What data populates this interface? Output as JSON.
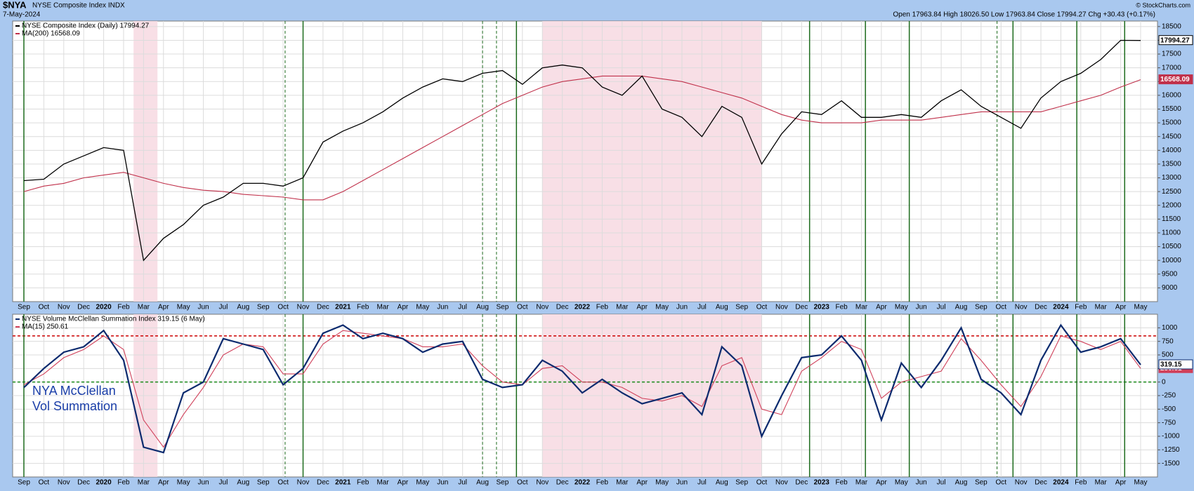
{
  "header": {
    "symbol": "$NYA",
    "name": "NYSE Composite Index INDX",
    "date": "7-May-2024",
    "quote": "Open 17963.84  High 18026.50  Low 17963.84  Close 17994.27  Chg +30.43 (+0.17%)",
    "credit": "© StockCharts.com"
  },
  "chart_data": [
    {
      "type": "line",
      "categories": [
        "Sep",
        "Oct",
        "Nov",
        "Dec",
        "2020",
        "Feb",
        "Mar",
        "Apr",
        "May",
        "Jun",
        "Jul",
        "Aug",
        "Sep",
        "Oct",
        "Nov",
        "Dec",
        "2021",
        "Feb",
        "Mar",
        "Apr",
        "May",
        "Jun",
        "Jul",
        "Aug",
        "Sep",
        "Oct",
        "Nov",
        "Dec",
        "2022",
        "Feb",
        "Mar",
        "Apr",
        "May",
        "Jun",
        "Jul",
        "Aug",
        "Sep",
        "Oct",
        "Nov",
        "Dec",
        "2023",
        "Feb",
        "Mar",
        "Apr",
        "May",
        "Jun",
        "Jul",
        "Aug",
        "Sep",
        "Oct",
        "Nov",
        "Dec",
        "2024",
        "Feb",
        "Mar",
        "Apr",
        "May"
      ],
      "series": [
        {
          "name": "NYSE Composite Index (Daily) 17994.27",
          "color": "#000000",
          "values": [
            12900,
            12950,
            13500,
            13800,
            14100,
            14000,
            10000,
            10800,
            11300,
            12000,
            12300,
            12800,
            12800,
            12700,
            13000,
            14300,
            14700,
            15000,
            15400,
            15900,
            16300,
            16600,
            16500,
            16800,
            16900,
            16400,
            17000,
            17100,
            17000,
            16300,
            16000,
            16700,
            15500,
            15200,
            14500,
            15600,
            15200,
            13500,
            14600,
            15400,
            15300,
            15800,
            15200,
            15200,
            15300,
            15200,
            15800,
            16200,
            15600,
            15200,
            14800,
            15900,
            16500,
            16800,
            17300,
            18000,
            17994.27
          ]
        },
        {
          "name": "MA(200) 16568.09",
          "color": "#c0304a",
          "values": [
            12500,
            12700,
            12800,
            13000,
            13100,
            13200,
            13000,
            12800,
            12650,
            12550,
            12500,
            12400,
            12350,
            12300,
            12200,
            12200,
            12500,
            12900,
            13300,
            13700,
            14100,
            14500,
            14900,
            15300,
            15700,
            16000,
            16300,
            16500,
            16600,
            16700,
            16700,
            16700,
            16600,
            16500,
            16300,
            16100,
            15900,
            15600,
            15300,
            15100,
            15000,
            15000,
            15000,
            15100,
            15100,
            15100,
            15200,
            15300,
            15400,
            15400,
            15400,
            15400,
            15600,
            15800,
            16000,
            16300,
            16568.09
          ]
        }
      ],
      "ylim": [
        8500,
        18700
      ],
      "yticks": [
        9000,
        9500,
        10000,
        10500,
        11000,
        11500,
        12000,
        12500,
        13000,
        13500,
        14000,
        14500,
        15000,
        15500,
        16000,
        16500,
        17000,
        17500,
        18000,
        18500
      ],
      "grid": true,
      "vlines": [
        {
          "x": 0,
          "style": "solid"
        },
        {
          "x": 13.1,
          "style": "dashed"
        },
        {
          "x": 14,
          "style": "solid"
        },
        {
          "x": 23,
          "style": "dashed"
        },
        {
          "x": 23.7,
          "style": "dashed"
        },
        {
          "x": 24.7,
          "style": "solid"
        },
        {
          "x": 39.4,
          "style": "solid"
        },
        {
          "x": 42.2,
          "style": "solid"
        },
        {
          "x": 44.4,
          "style": "solid"
        },
        {
          "x": 48.8,
          "style": "dashed"
        },
        {
          "x": 49.6,
          "style": "solid"
        },
        {
          "x": 52.8,
          "style": "solid"
        },
        {
          "x": 55.2,
          "style": "solid"
        }
      ],
      "shaded": [
        [
          5.5,
          6.7
        ],
        [
          26,
          37
        ]
      ]
    },
    {
      "type": "line",
      "categories": [
        "Sep",
        "Oct",
        "Nov",
        "Dec",
        "2020",
        "Feb",
        "Mar",
        "Apr",
        "May",
        "Jun",
        "Jul",
        "Aug",
        "Sep",
        "Oct",
        "Nov",
        "Dec",
        "2021",
        "Feb",
        "Mar",
        "Apr",
        "May",
        "Jun",
        "Jul",
        "Aug",
        "Sep",
        "Oct",
        "Nov",
        "Dec",
        "2022",
        "Feb",
        "Mar",
        "Apr",
        "May",
        "Jun",
        "Jul",
        "Aug",
        "Sep",
        "Oct",
        "Nov",
        "Dec",
        "2023",
        "Feb",
        "Mar",
        "Apr",
        "May",
        "Jun",
        "Jul",
        "Aug",
        "Sep",
        "Oct",
        "Nov",
        "Dec",
        "2024",
        "Feb",
        "Mar",
        "Apr",
        "May"
      ],
      "series": [
        {
          "name": "NYSE Volume McClellan Summation Index 319.15 (6 May)",
          "color": "#0b2a6e",
          "values": [
            -100,
            250,
            550,
            650,
            950,
            400,
            -1200,
            -1300,
            -200,
            0,
            800,
            700,
            600,
            -50,
            250,
            900,
            1050,
            800,
            900,
            800,
            550,
            700,
            750,
            50,
            -100,
            -50,
            400,
            200,
            -200,
            50,
            -200,
            -400,
            -300,
            -200,
            -600,
            650,
            300,
            -1000,
            -250,
            450,
            500,
            850,
            400,
            -700,
            350,
            -100,
            400,
            1000,
            50,
            -200,
            -600,
            400,
            1050,
            550,
            650,
            800,
            319.15
          ]
        },
        {
          "name": "MA(15) 250.61",
          "color": "#d0405a",
          "values": [
            -50,
            150,
            450,
            600,
            850,
            600,
            -700,
            -1200,
            -600,
            -100,
            500,
            700,
            650,
            150,
            150,
            700,
            950,
            900,
            850,
            800,
            650,
            650,
            700,
            300,
            0,
            -50,
            250,
            300,
            0,
            0,
            -100,
            -300,
            -350,
            -250,
            -450,
            300,
            450,
            -500,
            -600,
            200,
            450,
            750,
            600,
            -300,
            0,
            100,
            200,
            800,
            400,
            -50,
            -450,
            100,
            850,
            750,
            600,
            750,
            250.61
          ]
        }
      ],
      "ylim": [
        -1750,
        1250
      ],
      "yticks": [
        -1500,
        -1250,
        -1000,
        -750,
        -500,
        -250,
        0,
        250,
        500,
        750,
        1000
      ],
      "grid": true,
      "hlines": [
        {
          "value": 850,
          "color": "#cc0000"
        },
        {
          "value": 0,
          "color": "#1a8a1a"
        }
      ],
      "annotation": "NYA McClellan Vol Summation",
      "vlines": [
        {
          "x": 0,
          "style": "solid"
        },
        {
          "x": 13.1,
          "style": "dashed"
        },
        {
          "x": 14,
          "style": "solid"
        },
        {
          "x": 23,
          "style": "dashed"
        },
        {
          "x": 23.7,
          "style": "dashed"
        },
        {
          "x": 24.7,
          "style": "solid"
        },
        {
          "x": 39.4,
          "style": "solid"
        },
        {
          "x": 42.2,
          "style": "solid"
        },
        {
          "x": 44.4,
          "style": "solid"
        },
        {
          "x": 48.8,
          "style": "dashed"
        },
        {
          "x": 49.6,
          "style": "solid"
        },
        {
          "x": 52.8,
          "style": "solid"
        },
        {
          "x": 55.2,
          "style": "solid"
        }
      ],
      "shaded": [
        [
          5.5,
          6.7
        ],
        [
          26,
          37
        ]
      ]
    }
  ]
}
